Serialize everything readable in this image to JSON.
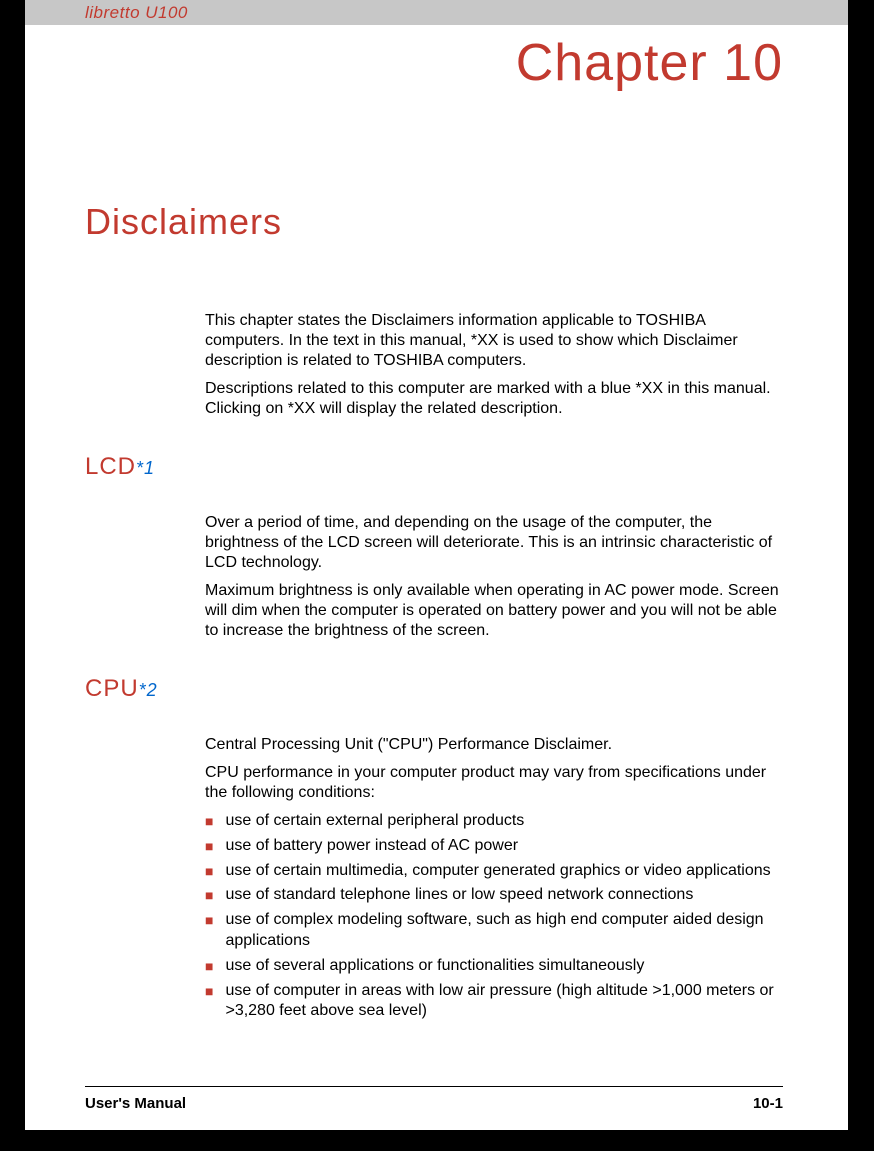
{
  "header": {
    "product": "libretto U100"
  },
  "chapter": "Chapter 10",
  "title": "Disclaimers",
  "intro": {
    "p1": "This chapter states the Disclaimers information applicable to TOSHIBA computers. In the text in this manual, *XX is used to show which Disclaimer description is related to TOSHIBA computers.",
    "p2": "Descriptions related to this computer are marked with a blue *XX in this manual. Clicking on *XX will display the related description."
  },
  "lcd": {
    "heading": "LCD",
    "ref": "*1",
    "p1": "Over a period of time, and depending on the usage of the computer, the brightness of the LCD screen will deteriorate. This is an intrinsic characteristic of LCD technology.",
    "p2": "Maximum brightness is only available when operating in AC power mode. Screen will dim when the computer is operated on battery power and you will not be able to increase the brightness of the screen."
  },
  "cpu": {
    "heading": "CPU",
    "ref": "*2",
    "p1": "Central Processing Unit (\"CPU\") Performance Disclaimer.",
    "p2": "CPU performance in your computer product may vary from specifications under the following conditions:",
    "bullets": [
      "use of certain external peripheral products",
      "use of battery power instead of AC power",
      "use of certain multimedia, computer generated graphics or video applications",
      "use of standard telephone lines or low speed network connections",
      "use of complex modeling software, such as high end computer aided design applications",
      "use of several applications or functionalities simultaneously",
      "use of computer in areas with low air pressure (high altitude >1,000 meters or >3,280 feet above sea level)"
    ]
  },
  "footer": {
    "left": "User's Manual",
    "right": "10-1"
  },
  "colors": {
    "accent": "#c23a2f",
    "link": "#0066cc",
    "header_bg": "#c7c7c7"
  }
}
